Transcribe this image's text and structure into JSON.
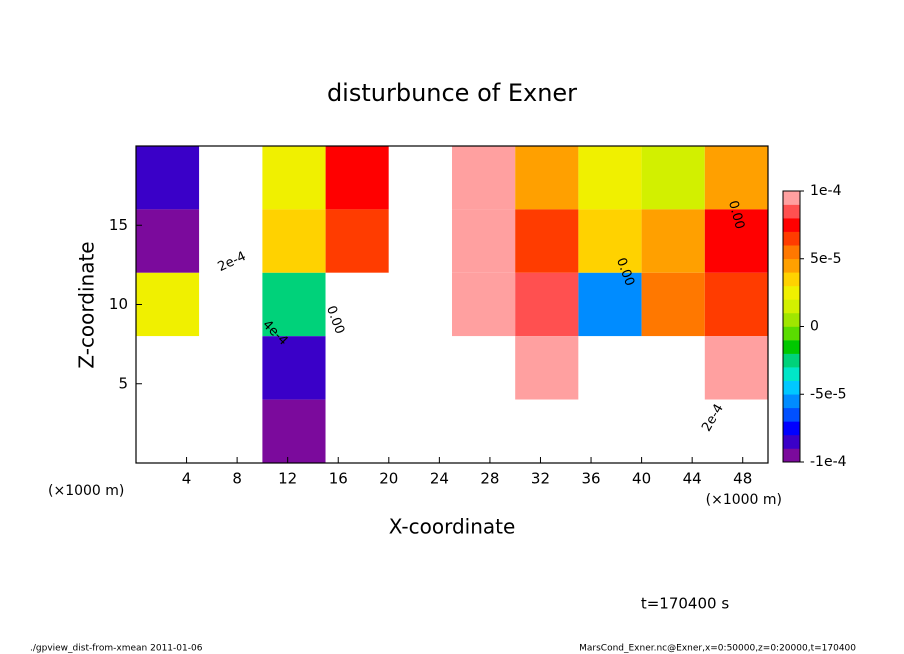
{
  "chart_data": {
    "type": "contour",
    "title": "disturbunce of Exner",
    "xlabel": "X-coordinate",
    "ylabel": "Z-coordinate",
    "x_unit_label": "(×1000 m)",
    "annotation": "t=170400 s",
    "footer_left": "./gpview_dist-from-xmean  2011-01-06",
    "footer_right": "MarsCond_Exner.nc@Exner,x=0:50000,z=0:20000,t=170400",
    "contour_labels": [
      "2e-4",
      "4e-4",
      "0.00",
      "0.00",
      "0.00",
      "2e-4"
    ],
    "xlim": [
      0,
      50
    ],
    "xticks": [
      4,
      8,
      12,
      16,
      20,
      24,
      28,
      32,
      36,
      40,
      44,
      48
    ],
    "ylim": [
      0,
      20
    ],
    "yticks": [
      5,
      10,
      15
    ],
    "x": [
      2.5,
      7.5,
      12.5,
      17.5,
      22.5,
      27.5,
      32.5,
      37.5,
      42.5,
      47.5
    ],
    "y": [
      18,
      14,
      10,
      6,
      2
    ],
    "z": [
      [
        -8e-05,
        -0.00015,
        2e-05,
        7e-05,
        0.00012,
        9e-05,
        4e-05,
        2e-05,
        1e-05,
        4e-05
      ],
      [
        -9e-05,
        -0.0002,
        3e-05,
        6e-05,
        0.00015,
        0.0001,
        6e-05,
        3e-05,
        4e-05,
        7e-05
      ],
      [
        2e-05,
        -0.0003,
        -3e-05,
        0.00012,
        0.00013,
        0.0001,
        8e-05,
        -6e-05,
        5e-05,
        6e-05
      ],
      [
        0.00015,
        -0.0004,
        -8e-05,
        0.00015,
        0.00012,
        0.00013,
        9e-05,
        -0.00015,
        0.00012,
        0.0001
      ],
      [
        0.00018,
        -0.0004,
        -0.0001,
        0.00015,
        0.00013,
        -0.00015,
        0.00014,
        0.00012,
        -0.00012,
        0.00012
      ]
    ],
    "zlim": [
      -0.0001,
      0.0001
    ],
    "zticks": [
      {
        "value": 0.0001,
        "label": "1e-4"
      },
      {
        "value": 5e-05,
        "label": "5e-5"
      },
      0,
      {
        "value": -5e-05,
        "label": "-5e-5"
      },
      {
        "value": -0.0001,
        "label": "-1e-4"
      }
    ],
    "colors": [
      "#7b0a9c",
      "#3a00c8",
      "#0000ff",
      "#0050ff",
      "#008cff",
      "#00c8ff",
      "#00e6c8",
      "#00d27a",
      "#00c800",
      "#5adc00",
      "#a0e600",
      "#d2f000",
      "#f0f000",
      "#ffd200",
      "#ffa000",
      "#ff7800",
      "#ff3c00",
      "#ff0000",
      "#ff5050",
      "#ffa0a0"
    ],
    "out_of_range_color": "#ffffff"
  }
}
